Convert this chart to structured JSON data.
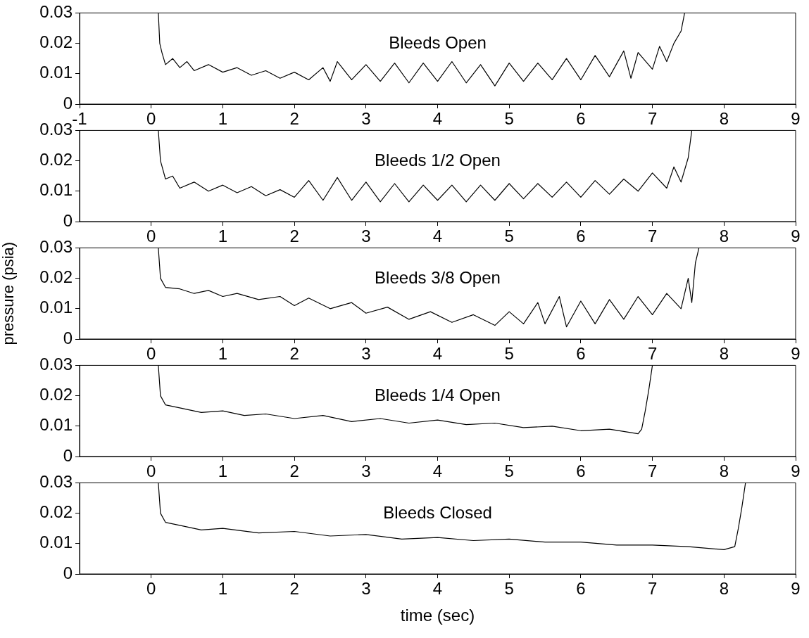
{
  "chart_data": [
    {
      "type": "line",
      "title": "Bleeds Open",
      "xlim": [
        -1,
        9
      ],
      "xticks": [
        -1,
        0,
        1,
        2,
        3,
        4,
        5,
        6,
        7,
        8,
        9
      ],
      "ylim": [
        0,
        0.03
      ],
      "yticks": [
        0,
        0.01,
        0.02,
        0.03
      ],
      "x": [
        0.1,
        0.12,
        0.15,
        0.2,
        0.3,
        0.4,
        0.5,
        0.6,
        0.8,
        1.0,
        1.2,
        1.4,
        1.6,
        1.8,
        2.0,
        2.2,
        2.4,
        2.5,
        2.6,
        2.8,
        3.0,
        3.2,
        3.4,
        3.6,
        3.8,
        4.0,
        4.2,
        4.4,
        4.6,
        4.8,
        5.0,
        5.2,
        5.4,
        5.6,
        5.8,
        6.0,
        6.2,
        6.4,
        6.6,
        6.7,
        6.8,
        7.0,
        7.1,
        7.2,
        7.3,
        7.4,
        7.45
      ],
      "series": [
        {
          "color": "#000000",
          "values": [
            0.03,
            0.02,
            0.017,
            0.013,
            0.015,
            0.012,
            0.014,
            0.011,
            0.013,
            0.0105,
            0.012,
            0.0095,
            0.011,
            0.0085,
            0.0105,
            0.008,
            0.012,
            0.0075,
            0.014,
            0.008,
            0.013,
            0.0075,
            0.0135,
            0.007,
            0.0135,
            0.0075,
            0.014,
            0.007,
            0.013,
            0.006,
            0.0135,
            0.0075,
            0.0135,
            0.008,
            0.015,
            0.008,
            0.016,
            0.009,
            0.0175,
            0.0085,
            0.017,
            0.0115,
            0.019,
            0.014,
            0.02,
            0.024,
            0.03
          ]
        }
      ]
    },
    {
      "type": "line",
      "title": "Bleeds 1/2 Open",
      "xlim": [
        -1,
        9
      ],
      "xticks": [
        0,
        1,
        2,
        3,
        4,
        5,
        6,
        7,
        8,
        9
      ],
      "ylim": [
        0,
        0.03
      ],
      "yticks": [
        0,
        0.01,
        0.02,
        0.03
      ],
      "x": [
        0.1,
        0.13,
        0.2,
        0.3,
        0.4,
        0.6,
        0.8,
        1.0,
        1.2,
        1.4,
        1.6,
        1.8,
        2.0,
        2.2,
        2.4,
        2.6,
        2.8,
        3.0,
        3.2,
        3.4,
        3.6,
        3.8,
        4.0,
        4.2,
        4.4,
        4.6,
        4.8,
        5.0,
        5.2,
        5.4,
        5.6,
        5.8,
        6.0,
        6.2,
        6.4,
        6.6,
        6.8,
        7.0,
        7.2,
        7.3,
        7.4,
        7.5,
        7.55
      ],
      "series": [
        {
          "color": "#000000",
          "values": [
            0.03,
            0.02,
            0.014,
            0.015,
            0.011,
            0.013,
            0.01,
            0.012,
            0.0095,
            0.0115,
            0.0085,
            0.0105,
            0.008,
            0.0135,
            0.007,
            0.0145,
            0.007,
            0.013,
            0.0065,
            0.0125,
            0.0065,
            0.012,
            0.007,
            0.012,
            0.0065,
            0.012,
            0.007,
            0.0125,
            0.0075,
            0.0125,
            0.008,
            0.013,
            0.008,
            0.0135,
            0.009,
            0.014,
            0.01,
            0.016,
            0.011,
            0.018,
            0.013,
            0.021,
            0.03
          ]
        }
      ]
    },
    {
      "type": "line",
      "title": "Bleeds 3/8 Open",
      "ylabel": "pressure (psia)",
      "xlim": [
        -1,
        9
      ],
      "xticks": [
        0,
        1,
        2,
        3,
        4,
        5,
        6,
        7,
        8,
        9
      ],
      "ylim": [
        0,
        0.03
      ],
      "yticks": [
        0,
        0.01,
        0.02,
        0.03
      ],
      "x": [
        0.1,
        0.13,
        0.2,
        0.4,
        0.6,
        0.8,
        1.0,
        1.2,
        1.5,
        1.8,
        2.0,
        2.2,
        2.5,
        2.8,
        3.0,
        3.3,
        3.6,
        3.9,
        4.2,
        4.5,
        4.8,
        5.0,
        5.2,
        5.4,
        5.5,
        5.7,
        5.8,
        6.0,
        6.2,
        6.4,
        6.6,
        6.8,
        7.0,
        7.2,
        7.4,
        7.5,
        7.55,
        7.6,
        7.65
      ],
      "series": [
        {
          "color": "#000000",
          "values": [
            0.03,
            0.02,
            0.017,
            0.0165,
            0.015,
            0.016,
            0.014,
            0.015,
            0.013,
            0.014,
            0.011,
            0.0135,
            0.01,
            0.012,
            0.0085,
            0.0105,
            0.0065,
            0.009,
            0.0055,
            0.008,
            0.0045,
            0.009,
            0.005,
            0.012,
            0.005,
            0.014,
            0.004,
            0.0125,
            0.005,
            0.013,
            0.0065,
            0.014,
            0.008,
            0.015,
            0.01,
            0.02,
            0.012,
            0.025,
            0.03
          ]
        }
      ]
    },
    {
      "type": "line",
      "title": "Bleeds 1/4 Open",
      "xlim": [
        -1,
        9
      ],
      "xticks": [
        0,
        1,
        2,
        3,
        4,
        5,
        6,
        7,
        8,
        9
      ],
      "ylim": [
        0,
        0.03
      ],
      "yticks": [
        0,
        0.01,
        0.02,
        0.03
      ],
      "x": [
        0.1,
        0.13,
        0.2,
        0.4,
        0.7,
        1.0,
        1.3,
        1.6,
        2.0,
        2.4,
        2.8,
        3.2,
        3.6,
        4.0,
        4.4,
        4.8,
        5.2,
        5.6,
        6.0,
        6.4,
        6.8,
        6.85,
        6.9,
        6.95,
        7.0
      ],
      "series": [
        {
          "color": "#000000",
          "values": [
            0.03,
            0.02,
            0.017,
            0.016,
            0.0145,
            0.015,
            0.0135,
            0.014,
            0.0125,
            0.0135,
            0.0115,
            0.0125,
            0.011,
            0.012,
            0.0105,
            0.011,
            0.0095,
            0.01,
            0.0085,
            0.009,
            0.0075,
            0.009,
            0.015,
            0.022,
            0.03
          ]
        }
      ]
    },
    {
      "type": "line",
      "title": "Bleeds Closed",
      "xlabel": "time (sec)",
      "xlim": [
        -1,
        9
      ],
      "xticks": [
        0,
        1,
        2,
        3,
        4,
        5,
        6,
        7,
        8,
        9
      ],
      "ylim": [
        0,
        0.03
      ],
      "yticks": [
        0,
        0.01,
        0.02,
        0.03
      ],
      "x": [
        0.1,
        0.13,
        0.2,
        0.4,
        0.7,
        1.0,
        1.5,
        2.0,
        2.5,
        3.0,
        3.5,
        4.0,
        4.5,
        5.0,
        5.5,
        6.0,
        6.5,
        7.0,
        7.5,
        8.0,
        8.15,
        8.2,
        8.25,
        8.3
      ],
      "series": [
        {
          "color": "#000000",
          "values": [
            0.03,
            0.02,
            0.017,
            0.016,
            0.0145,
            0.015,
            0.0135,
            0.014,
            0.0125,
            0.013,
            0.0115,
            0.012,
            0.011,
            0.0115,
            0.0105,
            0.0105,
            0.0095,
            0.0095,
            0.009,
            0.008,
            0.009,
            0.015,
            0.022,
            0.03
          ]
        }
      ]
    }
  ]
}
